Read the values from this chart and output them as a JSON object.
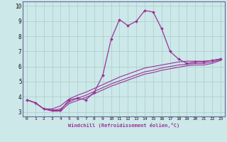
{
  "title": "",
  "xlabel": "Windchill (Refroidissement éolien,°C)",
  "ylabel": "",
  "background_color": "#cce8e8",
  "line_color": "#993399",
  "xlim": [
    -0.5,
    23.5
  ],
  "ylim": [
    2.7,
    10.3
  ],
  "xticks": [
    0,
    1,
    2,
    3,
    4,
    5,
    6,
    7,
    8,
    9,
    10,
    11,
    12,
    13,
    14,
    15,
    16,
    17,
    18,
    19,
    20,
    21,
    22,
    23
  ],
  "yticks": [
    3,
    4,
    5,
    6,
    7,
    8,
    9,
    10
  ],
  "series": [
    [
      3.8,
      3.6,
      3.2,
      3.1,
      3.1,
      3.8,
      3.9,
      3.8,
      4.3,
      5.4,
      7.8,
      9.1,
      8.7,
      9.0,
      9.7,
      9.6,
      8.5,
      7.0,
      6.5,
      6.2,
      6.3,
      6.3,
      6.4,
      6.5
    ],
    [
      3.8,
      3.6,
      3.2,
      3.2,
      3.4,
      3.85,
      4.1,
      4.3,
      4.55,
      4.8,
      5.05,
      5.3,
      5.5,
      5.7,
      5.9,
      6.0,
      6.1,
      6.2,
      6.3,
      6.35,
      6.35,
      6.35,
      6.4,
      6.5
    ],
    [
      3.8,
      3.6,
      3.2,
      3.1,
      3.2,
      3.65,
      3.9,
      4.1,
      4.35,
      4.6,
      4.85,
      5.05,
      5.25,
      5.45,
      5.65,
      5.75,
      5.9,
      6.0,
      6.1,
      6.15,
      6.2,
      6.2,
      6.3,
      6.45
    ],
    [
      3.8,
      3.6,
      3.2,
      3.05,
      3.05,
      3.55,
      3.75,
      3.95,
      4.2,
      4.45,
      4.7,
      4.9,
      5.1,
      5.3,
      5.5,
      5.6,
      5.75,
      5.85,
      5.95,
      6.05,
      6.1,
      6.1,
      6.2,
      6.4
    ]
  ],
  "grid_color": "#aacccc",
  "spine_color": "#666699",
  "xlabel_fontsize": 5.0,
  "tick_fontsize": 4.5,
  "ytick_fontsize": 5.5
}
